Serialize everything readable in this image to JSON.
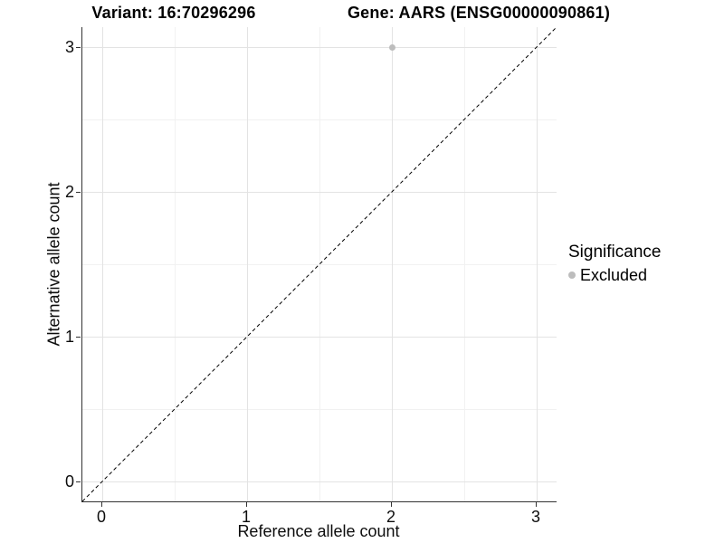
{
  "chart_data": {
    "type": "scatter",
    "title_left": "Variant: 16:70296296",
    "title_right": "Gene: AARS (ENSG00000090861)",
    "xlabel": "Reference allele count",
    "ylabel": "Alternative allele count",
    "xlim": [
      -0.1375,
      3.1375
    ],
    "ylim": [
      -0.1375,
      3.1375
    ],
    "x_ticks": [
      0,
      1,
      2,
      3
    ],
    "y_ticks": [
      0,
      1,
      2,
      3
    ],
    "x_minor_ticks": [
      0.5,
      1.5,
      2.5
    ],
    "y_minor_ticks": [
      0.5,
      1.5,
      2.5
    ],
    "grid": true,
    "series": [
      {
        "name": "Excluded",
        "color": "#bdbdbd",
        "points": [
          {
            "x": 2,
            "y": 3
          }
        ]
      }
    ],
    "abline": {
      "slope": 1,
      "intercept": 0,
      "dashed": true,
      "color": "#000000"
    },
    "legend": {
      "title": "Significance",
      "position": "right",
      "items": [
        {
          "label": "Excluded",
          "color": "#bdbdbd"
        }
      ]
    },
    "colors": {
      "grid_major": "#e3e3e3",
      "grid_minor": "#f1f1f1",
      "axis_line": "#333333",
      "text": "#000000"
    }
  }
}
